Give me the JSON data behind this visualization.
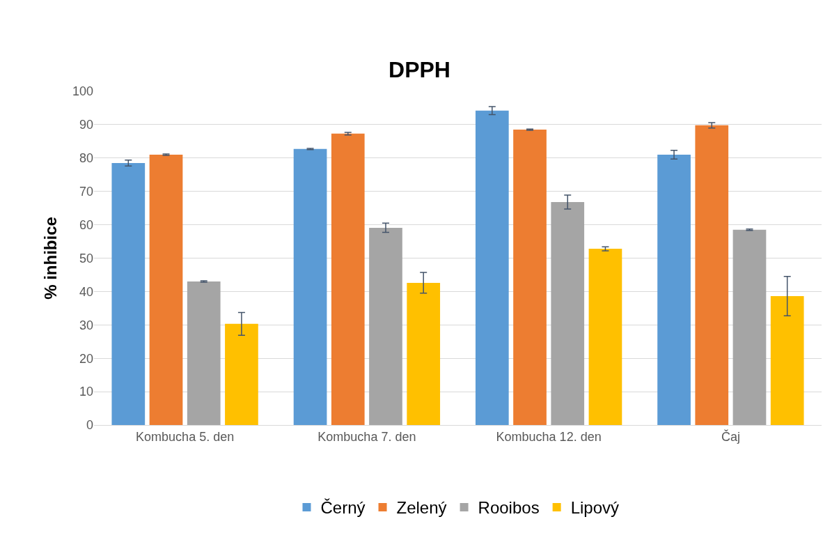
{
  "chart_data": {
    "type": "bar",
    "title": "DPPH",
    "ylabel": "% inhibice",
    "categories": [
      "Kombucha 5. den",
      "Kombucha 7. den",
      "Kombucha 12. den",
      "Čaj"
    ],
    "series": [
      {
        "name": "Černý",
        "color": "#5b9bd5",
        "values": [
          78.5,
          82.7,
          94.2,
          81.0
        ],
        "errors": [
          0.9,
          0.2,
          1.2,
          1.3
        ]
      },
      {
        "name": "Zelený",
        "color": "#ed7d31",
        "values": [
          81.0,
          87.3,
          88.5,
          89.8
        ],
        "errors": [
          0.2,
          0.4,
          0.2,
          0.8
        ]
      },
      {
        "name": "Rooibos",
        "color": "#a5a5a5",
        "values": [
          43.0,
          59.1,
          66.8,
          58.5
        ],
        "errors": [
          0.2,
          1.4,
          2.1,
          0.2
        ]
      },
      {
        "name": "Lipový",
        "color": "#ffc000",
        "values": [
          30.3,
          42.6,
          52.8,
          38.6
        ],
        "errors": [
          3.4,
          3.1,
          0.6,
          5.9
        ]
      }
    ],
    "ylim": [
      0,
      100
    ],
    "yticks": [
      0,
      10,
      20,
      30,
      40,
      50,
      60,
      70,
      80,
      90,
      100
    ],
    "grid": "y",
    "legend": "bottom"
  }
}
